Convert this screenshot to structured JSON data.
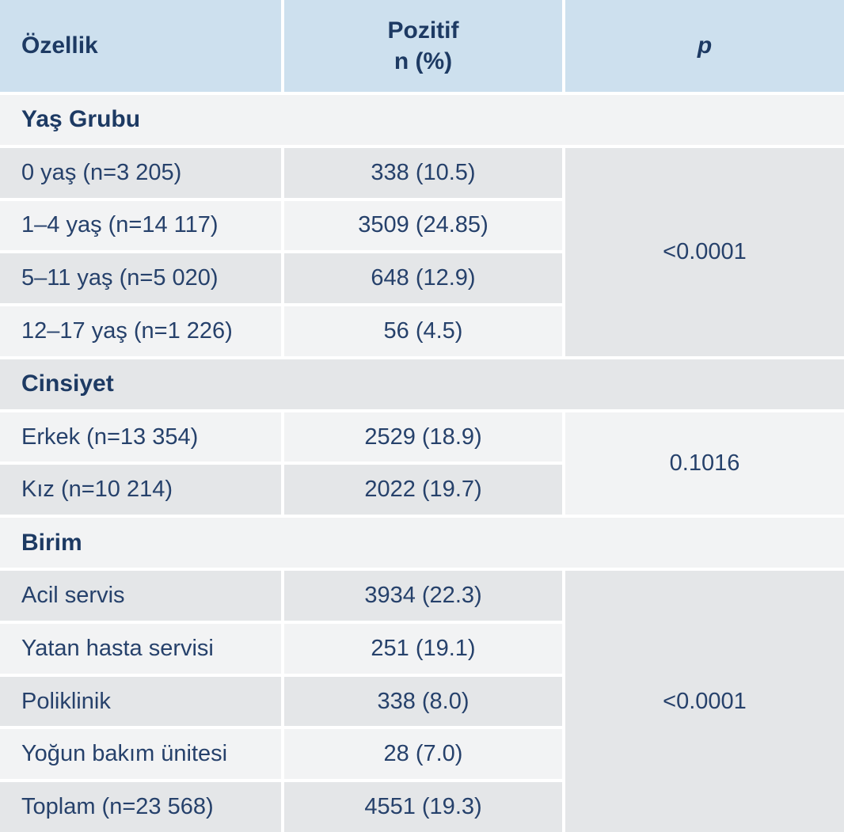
{
  "table": {
    "header": {
      "ozellik": "Özellik",
      "pozitif_line1": "Pozitif",
      "pozitif_line2": "n (%)",
      "p": "p"
    },
    "sections": [
      {
        "title": "Yaş Grubu",
        "p_value": "<0.0001",
        "rows": [
          {
            "label": "0 yaş (n=3 205)",
            "positive": "338 (10.5)"
          },
          {
            "label": "1–4 yaş (n=14 117)",
            "positive": "3509 (24.85)"
          },
          {
            "label": "5–11 yaş (n=5 020)",
            "positive": "648 (12.9)"
          },
          {
            "label": "12–17 yaş (n=1 226)",
            "positive": "56 (4.5)"
          }
        ]
      },
      {
        "title": "Cinsiyet",
        "p_value": "0.1016",
        "rows": [
          {
            "label": "Erkek (n=13 354)",
            "positive": "2529 (18.9)"
          },
          {
            "label": "Kız (n=10 214)",
            "positive": "2022 (19.7)"
          }
        ]
      },
      {
        "title": "Birim",
        "p_value": "<0.0001",
        "rows": [
          {
            "label": "Acil servis",
            "positive": "3934 (22.3)"
          },
          {
            "label": "Yatan hasta servisi",
            "positive": "251 (19.1)"
          },
          {
            "label": "Poliklinik",
            "positive": "338 (8.0)"
          },
          {
            "label": "Yoğun bakım ünitesi",
            "positive": "28 (7.0)"
          },
          {
            "label": "Toplam (n=23 568)",
            "positive": "4551 (19.3)"
          }
        ]
      }
    ],
    "colors": {
      "header_bg": "#cde0ee",
      "row_light": "#f2f3f4",
      "row_dark": "#e4e6e8",
      "heading_text": "#1d3a63",
      "body_text": "#26416b",
      "gutter": "#ffffff"
    }
  }
}
